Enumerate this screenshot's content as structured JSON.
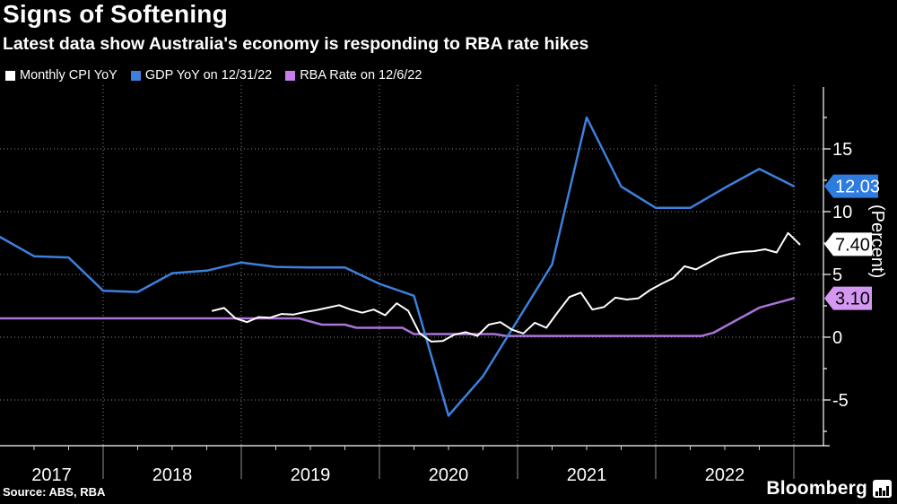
{
  "header": {
    "title": "Signs of Softening",
    "subtitle": "Latest data show Australia's economy is responding to RBA rate hikes"
  },
  "legend": [
    {
      "label": "Monthly CPI YoY",
      "color": "#ffffff"
    },
    {
      "label": "GDP YoY on 12/31/22",
      "color": "#3d80dd"
    },
    {
      "label": "RBA Rate on 12/6/22",
      "color": "#c77deb"
    }
  ],
  "footer": {
    "source": "Source: ABS, RBA",
    "brand": "Bloomberg"
  },
  "chart_data": {
    "type": "line",
    "title": "Signs of Softening",
    "ylabel": "(Percent)",
    "grid": "dotted",
    "x_range_years": [
      2017.25,
      2023.23
    ],
    "y_axis": {
      "range": [
        -8.6,
        19.9
      ],
      "major_ticks": [
        -5,
        0,
        5,
        10,
        15
      ],
      "major_tick_labels": [
        "-5",
        "0",
        "5",
        "10",
        "15"
      ],
      "minor_ticks": [
        -7.5,
        -2.5,
        2.5,
        7.5,
        12.5,
        17.5
      ]
    },
    "x_axis": {
      "year_labels": [
        "2017",
        "2018",
        "2019",
        "2020",
        "2021",
        "2022"
      ],
      "year_dividers": [
        2018,
        2019,
        2020,
        2021,
        2022,
        2023
      ],
      "quarter_tick_step": 0.25
    },
    "series": [
      {
        "name": "Monthly CPI YoY",
        "freq": "monthly",
        "start_t": 2018.7917,
        "step_t": 0.083333,
        "color": "#ffffff",
        "width": 2,
        "end_label": "7.40",
        "label_bg": "#ffffff",
        "label_fg": "#000000",
        "values": [
          2.1,
          2.33,
          1.5,
          1.2,
          1.6,
          1.55,
          1.85,
          1.8,
          2.0,
          2.15,
          2.35,
          2.55,
          2.2,
          1.95,
          2.2,
          1.75,
          2.7,
          2.1,
          0.3,
          -0.35,
          -0.3,
          0.2,
          0.4,
          0.1,
          1.0,
          1.2,
          0.6,
          0.3,
          1.15,
          0.75,
          2.0,
          3.2,
          3.55,
          2.2,
          2.4,
          3.15,
          3.0,
          3.1,
          3.75,
          4.25,
          4.7,
          5.65,
          5.4,
          5.9,
          6.4,
          6.65,
          6.8,
          6.85,
          7.0,
          6.75,
          8.3,
          7.4
        ]
      },
      {
        "name": "GDP YoY on 12/31/22",
        "freq": "quarterly",
        "start_t": 2017.25,
        "step_t": 0.25,
        "color": "#3d80dd",
        "width": 2.5,
        "end_label": "12.03",
        "label_bg": "#2f7ce0",
        "label_fg": "#ffffff",
        "values": [
          8.0,
          6.45,
          6.35,
          3.7,
          3.6,
          5.1,
          5.3,
          5.95,
          5.6,
          5.55,
          5.55,
          4.25,
          3.3,
          -6.25,
          -3.1,
          1.35,
          5.8,
          17.5,
          12.0,
          10.3,
          10.3,
          11.9,
          13.4,
          12.03
        ]
      },
      {
        "name": "RBA Rate on 12/6/22",
        "freq": "monthly",
        "start_t": 2017.0833,
        "step_t": 0.083333,
        "color": "#aa74d8",
        "width": 2.5,
        "end_label": "3.10",
        "label_bg": "#d598f2",
        "label_fg": "#000000",
        "values": [
          1.5,
          1.5,
          1.5,
          1.5,
          1.5,
          1.5,
          1.5,
          1.5,
          1.5,
          1.5,
          1.5,
          1.5,
          1.5,
          1.5,
          1.5,
          1.5,
          1.5,
          1.5,
          1.5,
          1.5,
          1.5,
          1.5,
          1.5,
          1.5,
          1.5,
          1.5,
          1.5,
          1.5,
          1.5,
          1.25,
          1.0,
          1.0,
          1.0,
          0.75,
          0.75,
          0.75,
          0.75,
          0.75,
          0.25,
          0.25,
          0.25,
          0.25,
          0.25,
          0.25,
          0.25,
          0.25,
          0.1,
          0.1,
          0.1,
          0.1,
          0.1,
          0.1,
          0.1,
          0.1,
          0.1,
          0.1,
          0.1,
          0.1,
          0.1,
          0.1,
          0.1,
          0.1,
          0.1,
          0.1,
          0.35,
          0.85,
          1.35,
          1.85,
          2.35,
          2.6,
          2.85,
          3.1
        ]
      }
    ]
  }
}
